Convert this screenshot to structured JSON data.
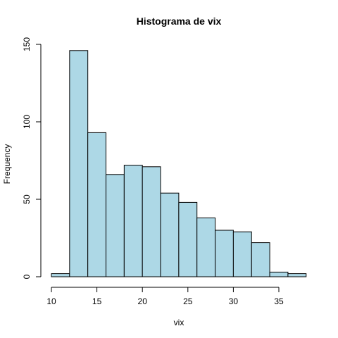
{
  "chart_data": {
    "type": "bar",
    "title": "Histograma de vix",
    "xlabel": "vix",
    "ylabel": "Frequency",
    "bins": [
      {
        "from": 10,
        "to": 12,
        "count": 2
      },
      {
        "from": 12,
        "to": 14,
        "count": 146
      },
      {
        "from": 14,
        "to": 16,
        "count": 93
      },
      {
        "from": 16,
        "to": 18,
        "count": 66
      },
      {
        "from": 18,
        "to": 20,
        "count": 72
      },
      {
        "from": 20,
        "to": 22,
        "count": 71
      },
      {
        "from": 22,
        "to": 24,
        "count": 54
      },
      {
        "from": 24,
        "to": 26,
        "count": 48
      },
      {
        "from": 26,
        "to": 28,
        "count": 38
      },
      {
        "from": 28,
        "to": 30,
        "count": 30
      },
      {
        "from": 30,
        "to": 32,
        "count": 29
      },
      {
        "from": 32,
        "to": 34,
        "count": 22
      },
      {
        "from": 34,
        "to": 36,
        "count": 3
      },
      {
        "from": 36,
        "to": 38,
        "count": 2
      }
    ],
    "x_ticks": [
      "10",
      "15",
      "20",
      "25",
      "30",
      "35"
    ],
    "y_ticks": [
      "0",
      "50",
      "100",
      "150"
    ],
    "xlim": [
      10,
      38
    ],
    "ylim": [
      0,
      150
    ],
    "grid": false,
    "bar_fill": "#add8e6",
    "bar_stroke": "#000000"
  }
}
